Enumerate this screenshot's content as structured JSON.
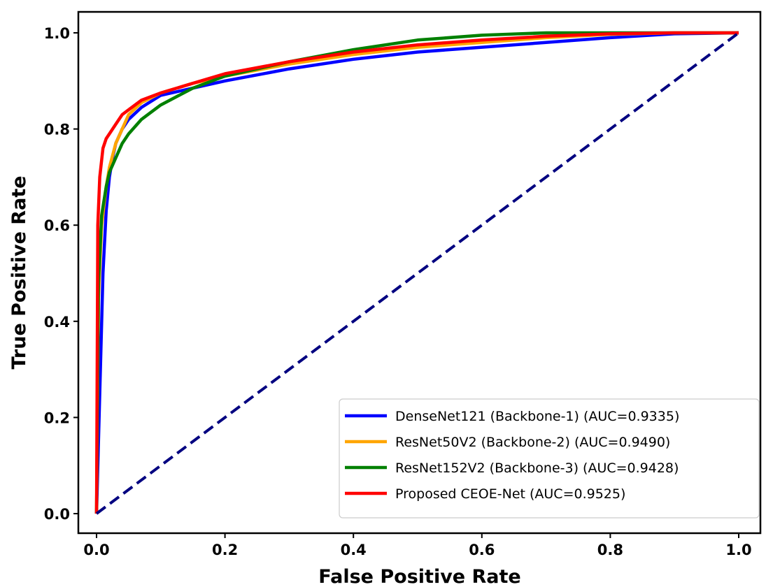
{
  "chart_data": {
    "type": "line",
    "title": "",
    "xlabel": "False Positive Rate",
    "ylabel": "True Positive Rate",
    "xlim": [
      0.0,
      1.0
    ],
    "ylim": [
      0.0,
      1.0
    ],
    "xticks": [
      "0.0",
      "0.2",
      "0.4",
      "0.6",
      "0.8",
      "1.0"
    ],
    "yticks": [
      "0.0",
      "0.2",
      "0.4",
      "0.6",
      "0.8",
      "1.0"
    ],
    "grid": false,
    "legend_position": "lower-right",
    "series": [
      {
        "name": "DenseNet121 (Backbone-1) (AUC=0.9335)",
        "color": "#0000ff",
        "x": [
          0,
          0.005,
          0.01,
          0.015,
          0.02,
          0.025,
          0.03,
          0.04,
          0.05,
          0.07,
          0.1,
          0.15,
          0.2,
          0.3,
          0.4,
          0.5,
          0.6,
          0.7,
          0.8,
          0.9,
          1.0
        ],
        "y": [
          0,
          0.25,
          0.5,
          0.63,
          0.7,
          0.74,
          0.77,
          0.8,
          0.82,
          0.845,
          0.87,
          0.885,
          0.9,
          0.925,
          0.945,
          0.96,
          0.97,
          0.98,
          0.99,
          0.998,
          1.0
        ]
      },
      {
        "name": "ResNet50V2 (Backbone-2) (AUC=0.9490)",
        "color": "#ffa500",
        "x": [
          0,
          0.003,
          0.008,
          0.015,
          0.02,
          0.03,
          0.04,
          0.05,
          0.07,
          0.1,
          0.15,
          0.2,
          0.3,
          0.4,
          0.5,
          0.6,
          0.7,
          0.8,
          0.9,
          1.0
        ],
        "y": [
          0,
          0.45,
          0.6,
          0.68,
          0.72,
          0.77,
          0.8,
          0.83,
          0.855,
          0.875,
          0.895,
          0.91,
          0.935,
          0.955,
          0.97,
          0.98,
          0.99,
          0.997,
          1.0,
          1.0
        ]
      },
      {
        "name": "ResNet152V2 (Backbone-3) (AUC=0.9428)",
        "color": "#008000",
        "x": [
          0,
          0.003,
          0.008,
          0.015,
          0.02,
          0.03,
          0.04,
          0.05,
          0.07,
          0.1,
          0.15,
          0.2,
          0.3,
          0.4,
          0.5,
          0.6,
          0.7,
          0.8,
          0.9,
          1.0
        ],
        "y": [
          0,
          0.48,
          0.62,
          0.68,
          0.71,
          0.74,
          0.77,
          0.79,
          0.82,
          0.85,
          0.885,
          0.91,
          0.94,
          0.965,
          0.985,
          0.995,
          1.0,
          1.0,
          1.0,
          1.0
        ]
      },
      {
        "name": "Proposed CEOE-Net (AUC=0.9525)",
        "color": "#ff0000",
        "x": [
          0,
          0.002,
          0.005,
          0.01,
          0.015,
          0.02,
          0.03,
          0.04,
          0.05,
          0.07,
          0.1,
          0.15,
          0.2,
          0.3,
          0.4,
          0.5,
          0.6,
          0.7,
          0.8,
          0.9,
          1.0
        ],
        "y": [
          0,
          0.6,
          0.7,
          0.76,
          0.78,
          0.79,
          0.81,
          0.83,
          0.84,
          0.86,
          0.875,
          0.895,
          0.915,
          0.94,
          0.96,
          0.975,
          0.985,
          0.993,
          0.998,
          1.0,
          1.0
        ]
      },
      {
        "name": "diagonal",
        "color": "#000080",
        "dashed": true,
        "x": [
          0,
          1
        ],
        "y": [
          0,
          1
        ]
      }
    ]
  }
}
